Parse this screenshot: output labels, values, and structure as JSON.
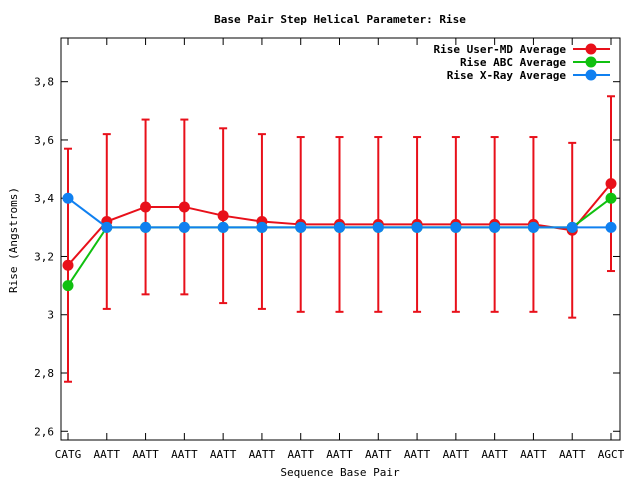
{
  "chart_data": {
    "type": "line",
    "title": "Base Pair Step Helical Parameter: Rise",
    "xlabel": "Sequence Base Pair",
    "ylabel": "Rise (Angstroms)",
    "categories": [
      "CATG",
      "AATT",
      "AATT",
      "AATT",
      "AATT",
      "AATT",
      "AATT",
      "AATT",
      "AATT",
      "AATT",
      "AATT",
      "AATT",
      "AATT",
      "AATT",
      "AGCT"
    ],
    "ylim": [
      2.57,
      3.95
    ],
    "yticks": [
      2.6,
      2.8,
      3,
      3.2,
      3.4,
      3.6,
      3.8
    ],
    "ytick_labels": [
      "2,6",
      "2,8",
      "3",
      "3,2",
      "3,4",
      "3,6",
      "3,8"
    ],
    "legend_position": "top-right",
    "grid": false,
    "series": [
      {
        "name": "Rise User-MD Average",
        "color": "#e8101a",
        "values": [
          3.17,
          3.32,
          3.37,
          3.37,
          3.34,
          3.32,
          3.31,
          3.31,
          3.31,
          3.31,
          3.31,
          3.31,
          3.31,
          3.29,
          3.45
        ],
        "error": [
          0.4,
          0.3,
          0.3,
          0.3,
          0.3,
          0.3,
          0.3,
          0.3,
          0.3,
          0.3,
          0.3,
          0.3,
          0.3,
          0.3,
          0.3
        ]
      },
      {
        "name": "Rise ABC Average",
        "color": "#10c010",
        "values": [
          3.1,
          3.3,
          3.3,
          3.3,
          3.3,
          3.3,
          3.3,
          3.3,
          3.3,
          3.3,
          3.3,
          3.3,
          3.3,
          3.3,
          3.4
        ]
      },
      {
        "name": "Rise X-Ray Average",
        "color": "#1080f0",
        "values": [
          3.4,
          3.3,
          3.3,
          3.3,
          3.3,
          3.3,
          3.3,
          3.3,
          3.3,
          3.3,
          3.3,
          3.3,
          3.3,
          3.3,
          3.3
        ]
      }
    ]
  }
}
